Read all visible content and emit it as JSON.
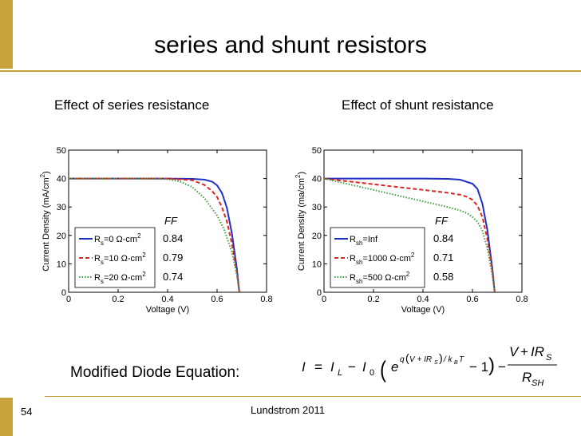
{
  "slide": {
    "title": "series and shunt resistors",
    "page_number": "54",
    "footer": "Lundstrom 2011",
    "equation_label": "Modified Diode Equation:",
    "accent_color": "#c9a13b"
  },
  "chart_data": [
    {
      "type": "line",
      "title": "Effect of series resistance",
      "xlabel": "Voltage (V)",
      "ylabel": "Current Density (mA/cm2)",
      "xlim": [
        0,
        0.8
      ],
      "ylim": [
        0,
        50
      ],
      "xticks": [
        "0",
        "0.2",
        "0.4",
        "0.6",
        "0.8"
      ],
      "yticks": [
        "0",
        "10",
        "20",
        "30",
        "40",
        "50"
      ],
      "legend": {
        "placement": "bottom-left"
      },
      "ff_header": "FF",
      "series": [
        {
          "name": "Rs=0 Ω-cm2",
          "ff": "0.84",
          "color": "#1f2fc8",
          "style": "solid",
          "x": [
            0,
            0.1,
            0.2,
            0.3,
            0.4,
            0.5,
            0.55,
            0.58,
            0.6,
            0.62,
            0.64,
            0.66,
            0.68,
            0.69
          ],
          "y": [
            40,
            40,
            40,
            40,
            40,
            39.9,
            39.6,
            38.9,
            37.6,
            34.9,
            29.6,
            20.6,
            8.3,
            0
          ]
        },
        {
          "name": "Rs=10 Ω-cm2",
          "ff": "0.79",
          "color": "#e0241e",
          "style": "dashed",
          "x": [
            0,
            0.1,
            0.2,
            0.3,
            0.4,
            0.5,
            0.55,
            0.58,
            0.6,
            0.62,
            0.64,
            0.66,
            0.68,
            0.69
          ],
          "y": [
            40,
            40,
            40,
            40,
            40,
            39.4,
            37.7,
            35.6,
            33.5,
            29.9,
            24.8,
            17.0,
            6.9,
            0
          ]
        },
        {
          "name": "Rs=20 Ω-cm2",
          "ff": "0.74",
          "color": "#3e9e3e",
          "style": "dotted",
          "x": [
            0,
            0.1,
            0.2,
            0.3,
            0.4,
            0.45,
            0.5,
            0.55,
            0.6,
            0.63,
            0.66,
            0.68,
            0.69
          ],
          "y": [
            40,
            40,
            40,
            40,
            39.8,
            39.0,
            37.0,
            33.0,
            27.0,
            21.8,
            14.0,
            6.1,
            0
          ]
        }
      ]
    },
    {
      "type": "line",
      "title": "Effect of shunt resistance",
      "xlabel": "Voltage (V)",
      "ylabel": "Current Density (ma/cm2)",
      "xlim": [
        0,
        0.8
      ],
      "ylim": [
        0,
        50
      ],
      "xticks": [
        "0",
        "0.2",
        "0.4",
        "0.6",
        "0.8"
      ],
      "yticks": [
        "0",
        "10",
        "20",
        "30",
        "40",
        "50"
      ],
      "legend": {
        "placement": "bottom-left"
      },
      "ff_header": "FF",
      "series": [
        {
          "name": "Rsh=Inf",
          "ff": "0.84",
          "color": "#1f2fc8",
          "style": "solid",
          "x": [
            0,
            0.1,
            0.2,
            0.3,
            0.4,
            0.5,
            0.55,
            0.6,
            0.62,
            0.64,
            0.66,
            0.68,
            0.69
          ],
          "y": [
            40,
            40,
            40,
            40,
            40,
            39.9,
            39.6,
            38.2,
            36.4,
            31.2,
            22.0,
            8.5,
            0
          ]
        },
        {
          "name": "Rsh=1000 Ω-cm2",
          "ff": "0.71",
          "color": "#e0241e",
          "style": "dashed",
          "x": [
            0,
            0.1,
            0.2,
            0.3,
            0.4,
            0.5,
            0.55,
            0.58,
            0.6,
            0.62,
            0.64,
            0.66,
            0.68,
            0.69
          ],
          "y": [
            40,
            39.0,
            38.0,
            37.0,
            36.0,
            35.0,
            34.3,
            33.5,
            32.5,
            30.5,
            26.5,
            18.9,
            7.6,
            0
          ]
        },
        {
          "name": "Rsh=500 Ω-cm2",
          "ff": "0.58",
          "color": "#3e9e3e",
          "style": "dotted",
          "x": [
            0,
            0.1,
            0.2,
            0.3,
            0.4,
            0.5,
            0.55,
            0.58,
            0.6,
            0.62,
            0.64,
            0.66,
            0.68,
            0.69
          ],
          "y": [
            40,
            38.0,
            36.0,
            34.0,
            32.0,
            30.0,
            28.8,
            27.7,
            26.5,
            24.8,
            21.7,
            15.5,
            6.2,
            0
          ]
        }
      ]
    }
  ]
}
